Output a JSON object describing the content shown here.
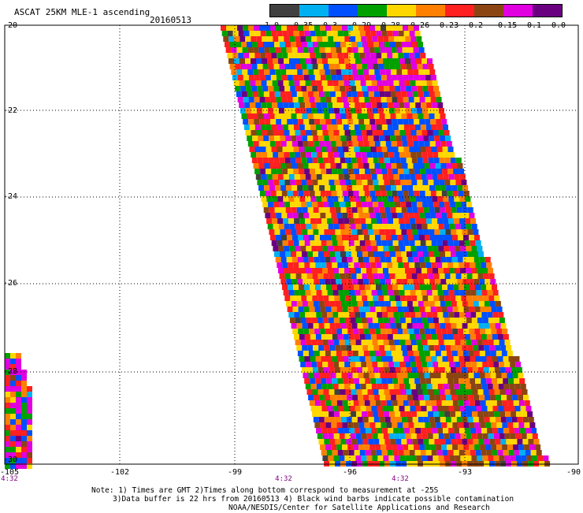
{
  "header": {
    "title": "ASCAT 25KM MLE-1 ascending",
    "date": "20160513"
  },
  "colorbar": {
    "colors": [
      "#404040",
      "#00b0f0",
      "#0050ff",
      "#00a000",
      "#ffd700",
      "#ff8000",
      "#ff2020",
      "#8b4513",
      "#e000e0",
      "#6a0080"
    ],
    "labels": [
      "-1.0",
      "-0.35",
      "-0.3",
      "-0.29",
      "-0.28",
      "-0.26",
      "-0.23",
      "-0.2",
      "-0.15",
      "-0.1",
      "0.0"
    ]
  },
  "axes": {
    "y_ticks": [
      "-20",
      "-22",
      "-24",
      "-26",
      "-28",
      "-30"
    ],
    "x_ticks": [
      "-105",
      "-102",
      "-99",
      "-96",
      "-93",
      "-90"
    ],
    "times": [
      "4:32",
      "4:32",
      "4:32"
    ]
  },
  "notes": {
    "line1": "Note: 1) Times are GMT 2)Times along bottom correspond to measurement at -25S",
    "line2": "3)Data buffer is 22 hrs from 20160513 4) Black wind barbs indicate possible contamination",
    "line3": "NOAA/NESDIS/Center for Satellite Applications and Research"
  }
}
